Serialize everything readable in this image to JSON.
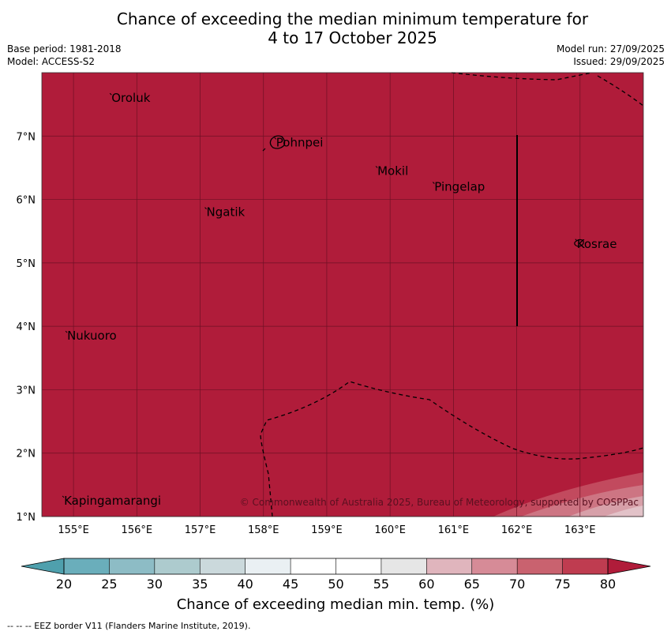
{
  "title": {
    "line1": "Chance of exceeding the median minimum temperature for",
    "line2": "4 to 17 October 2025"
  },
  "meta": {
    "base_period": "Base period: 1981-2018",
    "model": "Model: ACCESS-S2",
    "model_run": "Model run: 27/09/2025",
    "issued": "Issued: 29/09/2025"
  },
  "map": {
    "lon_range": [
      154.5,
      164.0
    ],
    "lat_range": [
      1.0,
      8.0
    ],
    "lon_ticks": [
      "155°E",
      "156°E",
      "157°E",
      "158°E",
      "159°E",
      "160°E",
      "161°E",
      "162°E",
      "163°E"
    ],
    "lat_ticks": [
      "1°N",
      "2°N",
      "3°N",
      "4°N",
      "5°N",
      "6°N",
      "7°N"
    ],
    "lon_tick_values": [
      155,
      156,
      157,
      158,
      159,
      160,
      161,
      162,
      163
    ],
    "lat_tick_values": [
      1,
      2,
      3,
      4,
      5,
      6,
      7
    ],
    "places": [
      {
        "name": "Oroluk",
        "lon": 155.6,
        "lat": 7.6
      },
      {
        "name": "Pohnpei",
        "lon": 158.2,
        "lat": 6.9
      },
      {
        "name": "Mokil",
        "lon": 159.8,
        "lat": 6.45
      },
      {
        "name": "Pingelap",
        "lon": 160.7,
        "lat": 6.2
      },
      {
        "name": "Ngatik",
        "lon": 157.1,
        "lat": 5.8
      },
      {
        "name": "Kosrae",
        "lon": 162.95,
        "lat": 5.3
      },
      {
        "name": "Nukuoro",
        "lon": 154.9,
        "lat": 3.85
      },
      {
        "name": "Kapingamarangi",
        "lon": 154.85,
        "lat": 1.25
      }
    ],
    "copyright": "© Commonwealth of Australia 2025, Bureau of Meteorology, supported by COSPPac",
    "fill_color": "#b01c3a",
    "grid_color": "#6d1024"
  },
  "colorbar": {
    "ticks": [
      "20",
      "25",
      "30",
      "35",
      "40",
      "45",
      "50",
      "55",
      "60",
      "65",
      "70",
      "75",
      "80"
    ],
    "colors": [
      "#6aaebb",
      "#8dbcc5",
      "#adcbce",
      "#cbd9dc",
      "#eaf0f3",
      "#ffffff",
      "#ffffff",
      "#e6e6e6",
      "#e0b5bd",
      "#d68b97",
      "#c9626f",
      "#bf3c50"
    ],
    "under_color": "#4fa0ad",
    "over_color": "#b01c3a",
    "label": "Chance of exceeding median min. temp. (%)"
  },
  "footnote": "--  --  -- EEZ border V11 (Flanders Marine Institute, 2019)."
}
